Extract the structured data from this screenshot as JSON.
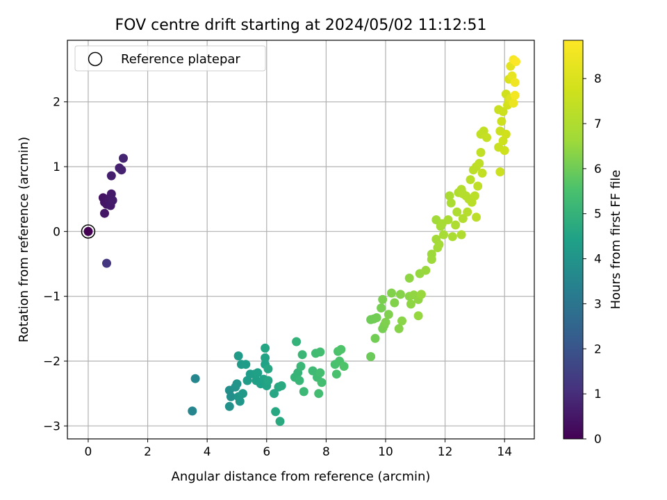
{
  "chart_data": {
    "type": "scatter",
    "title": "FOV centre drift starting at 2024/05/02 11:12:51",
    "xlabel": "Angular distance from reference (arcmin)",
    "ylabel": "Rotation from reference (arcmin)",
    "xlim": [
      -0.7,
      15.0
    ],
    "ylim": [
      -3.2,
      2.95
    ],
    "xticks": [
      0,
      2,
      4,
      6,
      8,
      10,
      12,
      14
    ],
    "yticks": [
      -3,
      -2,
      -1,
      0,
      1,
      2
    ],
    "grid": true,
    "legend": {
      "placement": "top-left",
      "entries": [
        "Reference platepar"
      ]
    },
    "reference_point": [
      0,
      0
    ],
    "colorbar": {
      "label": "Hours from first FF file",
      "colormap": "viridis",
      "range": [
        0,
        8.85
      ],
      "ticks": [
        0,
        1,
        2,
        3,
        4,
        5,
        6,
        7,
        8
      ]
    },
    "series": [
      {
        "points": [
          [
            0.0,
            0.0,
            0.0
          ],
          [
            0.5,
            0.52,
            0.4
          ],
          [
            0.55,
            0.45,
            0.42
          ],
          [
            0.6,
            0.5,
            0.45
          ],
          [
            0.62,
            0.42,
            0.47
          ],
          [
            0.55,
            0.28,
            0.5
          ],
          [
            0.7,
            0.48,
            0.52
          ],
          [
            0.75,
            0.4,
            0.55
          ],
          [
            0.78,
            0.58,
            0.57
          ],
          [
            0.82,
            0.48,
            0.6
          ],
          [
            0.78,
            0.86,
            0.65
          ],
          [
            1.05,
            0.98,
            0.7
          ],
          [
            1.12,
            0.95,
            0.75
          ],
          [
            1.18,
            1.13,
            0.8
          ],
          [
            0.62,
            -0.49,
            1.25
          ],
          [
            3.5,
            -2.77,
            3.5
          ],
          [
            3.6,
            -2.27,
            3.55
          ],
          [
            4.75,
            -2.45,
            3.8
          ],
          [
            4.8,
            -2.55,
            3.85
          ],
          [
            4.75,
            -2.7,
            3.9
          ],
          [
            4.95,
            -2.4,
            3.95
          ],
          [
            5.0,
            -2.35,
            4.0
          ],
          [
            5.05,
            -2.55,
            4.05
          ],
          [
            5.1,
            -2.62,
            4.1
          ],
          [
            5.2,
            -2.5,
            4.15
          ],
          [
            5.05,
            -1.92,
            4.2
          ],
          [
            5.15,
            -2.05,
            4.2
          ],
          [
            5.3,
            -2.05,
            4.25
          ],
          [
            5.35,
            -2.3,
            4.25
          ],
          [
            5.45,
            -2.2,
            4.3
          ],
          [
            5.6,
            -2.2,
            4.35
          ],
          [
            5.65,
            -2.3,
            4.35
          ],
          [
            5.7,
            -2.18,
            4.4
          ],
          [
            5.8,
            -2.35,
            4.4
          ],
          [
            5.9,
            -2.28,
            4.45
          ],
          [
            5.95,
            -2.05,
            4.45
          ],
          [
            5.95,
            -1.95,
            4.5
          ],
          [
            6.0,
            -2.38,
            4.5
          ],
          [
            5.95,
            -1.8,
            4.55
          ],
          [
            6.05,
            -2.3,
            4.55
          ],
          [
            6.05,
            -2.12,
            4.6
          ],
          [
            6.25,
            -2.5,
            4.6
          ],
          [
            6.3,
            -2.78,
            4.65
          ],
          [
            6.4,
            -2.4,
            4.65
          ],
          [
            6.45,
            -2.93,
            4.7
          ],
          [
            6.5,
            -2.38,
            4.7
          ],
          [
            7.0,
            -1.7,
            5.0
          ],
          [
            6.95,
            -2.25,
            5.05
          ],
          [
            7.05,
            -2.18,
            5.05
          ],
          [
            7.1,
            -2.3,
            5.1
          ],
          [
            7.15,
            -2.08,
            5.15
          ],
          [
            7.2,
            -1.9,
            5.15
          ],
          [
            7.25,
            -2.47,
            5.2
          ],
          [
            7.55,
            -2.15,
            5.25
          ],
          [
            7.65,
            -1.88,
            5.3
          ],
          [
            7.7,
            -2.25,
            5.3
          ],
          [
            7.75,
            -2.5,
            5.35
          ],
          [
            7.8,
            -1.86,
            5.35
          ],
          [
            7.8,
            -2.18,
            5.4
          ],
          [
            7.85,
            -2.33,
            5.4
          ],
          [
            8.3,
            -2.05,
            5.5
          ],
          [
            8.35,
            -2.2,
            5.5
          ],
          [
            8.4,
            -1.85,
            5.55
          ],
          [
            8.45,
            -2.0,
            5.55
          ],
          [
            8.5,
            -1.82,
            5.6
          ],
          [
            8.6,
            -2.08,
            5.6
          ],
          [
            9.5,
            -1.93,
            5.95
          ],
          [
            9.5,
            -1.36,
            6.0
          ],
          [
            9.6,
            -1.35,
            6.0
          ],
          [
            9.7,
            -1.33,
            6.05
          ],
          [
            9.65,
            -1.65,
            6.05
          ],
          [
            9.85,
            -1.18,
            6.1
          ],
          [
            9.9,
            -1.5,
            6.1
          ],
          [
            9.9,
            -1.05,
            6.15
          ],
          [
            9.95,
            -1.45,
            6.15
          ],
          [
            10.0,
            -1.4,
            6.2
          ],
          [
            10.1,
            -1.28,
            6.2
          ],
          [
            10.2,
            -0.95,
            6.25
          ],
          [
            10.3,
            -1.1,
            6.25
          ],
          [
            10.45,
            -1.5,
            6.3
          ],
          [
            10.5,
            -0.97,
            6.3
          ],
          [
            10.55,
            -1.38,
            6.35
          ],
          [
            10.8,
            -1.0,
            6.35
          ],
          [
            10.85,
            -1.12,
            6.4
          ],
          [
            10.8,
            -0.72,
            6.4
          ],
          [
            10.95,
            -0.98,
            6.45
          ],
          [
            11.1,
            -1.05,
            6.45
          ],
          [
            11.1,
            -1.3,
            6.5
          ],
          [
            11.15,
            -0.65,
            6.5
          ],
          [
            11.2,
            -0.97,
            6.55
          ],
          [
            11.35,
            -0.6,
            6.55
          ],
          [
            11.55,
            -0.43,
            6.6
          ],
          [
            11.55,
            -0.35,
            6.6
          ],
          [
            11.7,
            0.18,
            6.65
          ],
          [
            11.7,
            -0.12,
            6.7
          ],
          [
            11.75,
            -0.25,
            6.7
          ],
          [
            11.8,
            -0.2,
            6.75
          ],
          [
            11.85,
            0.08,
            6.75
          ],
          [
            11.9,
            0.12,
            6.8
          ],
          [
            11.95,
            -0.05,
            6.8
          ],
          [
            12.1,
            0.18,
            6.85
          ],
          [
            12.15,
            0.55,
            6.85
          ],
          [
            12.2,
            0.44,
            6.9
          ],
          [
            12.25,
            -0.08,
            6.9
          ],
          [
            12.35,
            0.1,
            6.95
          ],
          [
            12.4,
            0.3,
            6.95
          ],
          [
            12.45,
            0.6,
            7.0
          ],
          [
            12.55,
            -0.05,
            7.0
          ],
          [
            12.55,
            0.65,
            7.05
          ],
          [
            12.6,
            0.2,
            7.05
          ],
          [
            12.6,
            0.58,
            7.1
          ],
          [
            12.7,
            0.55,
            7.1
          ],
          [
            12.75,
            0.3,
            7.15
          ],
          [
            12.8,
            0.5,
            7.15
          ],
          [
            12.85,
            0.8,
            7.2
          ],
          [
            12.9,
            0.45,
            7.2
          ],
          [
            12.95,
            0.95,
            7.25
          ],
          [
            13.0,
            0.55,
            7.25
          ],
          [
            13.05,
            0.22,
            7.3
          ],
          [
            13.05,
            1.0,
            7.3
          ],
          [
            13.1,
            0.7,
            7.35
          ],
          [
            13.15,
            1.05,
            7.35
          ],
          [
            13.2,
            1.22,
            7.4
          ],
          [
            13.2,
            1.5,
            7.4
          ],
          [
            13.25,
            0.9,
            7.45
          ],
          [
            13.3,
            1.55,
            7.45
          ],
          [
            13.4,
            1.45,
            7.5
          ],
          [
            13.8,
            1.3,
            7.55
          ],
          [
            13.8,
            1.88,
            7.55
          ],
          [
            13.85,
            1.55,
            7.6
          ],
          [
            13.85,
            0.92,
            7.6
          ],
          [
            13.9,
            1.7,
            7.65
          ],
          [
            13.95,
            1.85,
            7.65
          ],
          [
            13.95,
            1.4,
            7.7
          ],
          [
            14.0,
            1.25,
            7.7
          ],
          [
            14.05,
            1.5,
            7.75
          ],
          [
            14.05,
            2.12,
            7.75
          ],
          [
            14.1,
            1.95,
            7.8
          ],
          [
            14.15,
            2.02,
            7.9
          ],
          [
            14.15,
            2.35,
            8.0
          ],
          [
            14.2,
            2.05,
            8.1
          ],
          [
            14.2,
            2.55,
            8.2
          ],
          [
            14.25,
            2.4,
            8.3
          ],
          [
            14.3,
            1.98,
            8.4
          ],
          [
            14.35,
            2.3,
            8.5
          ],
          [
            14.35,
            2.1,
            8.6
          ],
          [
            14.3,
            2.65,
            8.7
          ],
          [
            14.38,
            2.62,
            8.8
          ]
        ]
      }
    ]
  }
}
